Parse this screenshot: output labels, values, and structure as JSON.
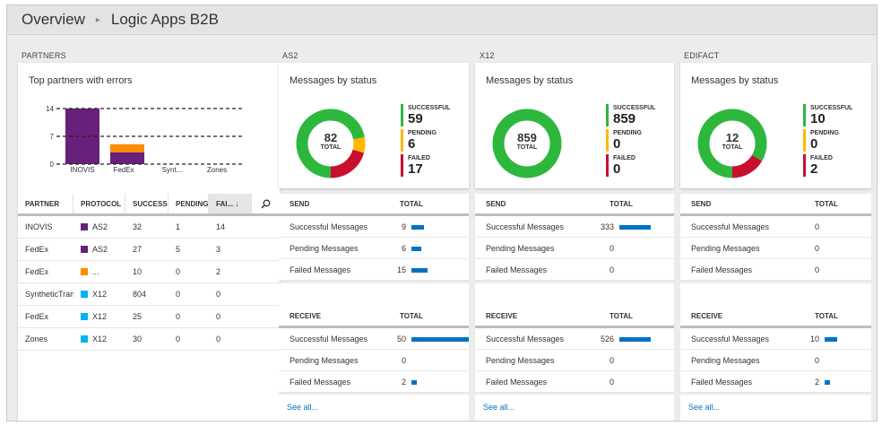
{
  "header": {
    "crumb1": "Overview",
    "separator": "▸",
    "crumb2": "Logic Apps B2B"
  },
  "sections": {
    "partners": "PARTNERS",
    "as2": "AS2",
    "x12": "X12",
    "edifact": "EDIFACT"
  },
  "partners_chart": {
    "title": "Top partners with errors",
    "y_ticks": [
      "14",
      "7",
      "0"
    ],
    "categories": [
      "INOVIS",
      "FedEx",
      "Synt...",
      "Zones"
    ],
    "colors": {
      "purple": "#68217a",
      "orange": "#ff8c00",
      "dash": "#222222"
    }
  },
  "chart_data": {
    "type": "bar",
    "title": "Top partners with errors",
    "categories": [
      "INOVIS",
      "FedEx",
      "Synt...",
      "Zones"
    ],
    "series": [
      {
        "values": [
          14,
          3,
          0,
          0
        ],
        "color": "#68217a"
      },
      {
        "values": [
          0,
          2,
          0,
          0
        ],
        "color": "#ff8c00"
      }
    ],
    "ylim": [
      0,
      14
    ],
    "y_ticks": [
      0,
      7,
      14
    ],
    "grid": "dashed"
  },
  "partners_table": {
    "headers": [
      "PARTNER",
      "PROTOCOL",
      "SUCCESS",
      "PENDING",
      "FAI... ↓"
    ],
    "rows": [
      {
        "partner": "INOVIS",
        "protocol": "AS2",
        "color": "#68217a",
        "success": "32",
        "pending": "1",
        "failed": "14"
      },
      {
        "partner": "FedEx",
        "protocol": "AS2",
        "color": "#68217a",
        "success": "27",
        "pending": "5",
        "failed": "3"
      },
      {
        "partner": "FedEx",
        "protocol": "...",
        "color": "#ff8c00",
        "success": "10",
        "pending": "0",
        "failed": "2"
      },
      {
        "partner": "SyntheticTrans",
        "protocol": "X12",
        "color": "#00b4f0",
        "success": "804",
        "pending": "0",
        "failed": "0"
      },
      {
        "partner": "FedEx",
        "protocol": "X12",
        "color": "#00b4f0",
        "success": "25",
        "pending": "0",
        "failed": "0"
      },
      {
        "partner": "Zones",
        "protocol": "X12",
        "color": "#00b4f0",
        "success": "30",
        "pending": "0",
        "failed": "0"
      }
    ]
  },
  "status_labels": {
    "title": "Messages by status",
    "successful": "SUCCESSFUL",
    "pending": "PENDING",
    "failed": "FAILED",
    "total": "TOTAL"
  },
  "status_colors": {
    "successful": "#2db83d",
    "pending": "#ffb900",
    "failed": "#c8102e"
  },
  "panels": [
    {
      "key": "as2",
      "total": "82",
      "successful": "59",
      "pending": "6",
      "failed": "17",
      "send": [
        {
          "label": "Successful Messages",
          "value": "9"
        },
        {
          "label": "Pending Messages",
          "value": "6"
        },
        {
          "label": "Failed Messages",
          "value": "15"
        }
      ],
      "receive": [
        {
          "label": "Successful Messages",
          "value": "50"
        },
        {
          "label": "Pending Messages",
          "value": "0"
        },
        {
          "label": "Failed Messages",
          "value": "2"
        }
      ]
    },
    {
      "key": "x12",
      "total": "859",
      "successful": "859",
      "pending": "0",
      "failed": "0",
      "send": [
        {
          "label": "Successful Messages",
          "value": "333"
        },
        {
          "label": "Pending Messages",
          "value": "0"
        },
        {
          "label": "Failed Messages",
          "value": "0"
        }
      ],
      "receive": [
        {
          "label": "Successful Messages",
          "value": "526"
        },
        {
          "label": "Pending Messages",
          "value": "0"
        },
        {
          "label": "Failed Messages",
          "value": "0"
        }
      ]
    },
    {
      "key": "edifact",
      "total": "12",
      "successful": "10",
      "pending": "0",
      "failed": "2",
      "send": [
        {
          "label": "Successful Messages",
          "value": "0"
        },
        {
          "label": "Pending Messages",
          "value": "0"
        },
        {
          "label": "Failed Messages",
          "value": "0"
        }
      ],
      "receive": [
        {
          "label": "Successful Messages",
          "value": "10"
        },
        {
          "label": "Pending Messages",
          "value": "0"
        },
        {
          "label": "Failed Messages",
          "value": "2"
        }
      ]
    }
  ],
  "lists": {
    "send": "SEND",
    "receive": "RECEIVE",
    "total": "TOTAL",
    "see_all": "See all..."
  }
}
